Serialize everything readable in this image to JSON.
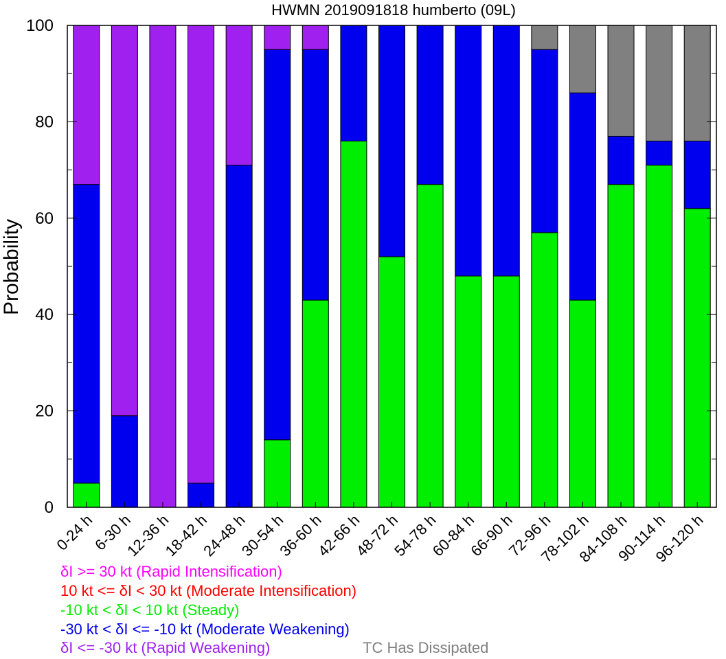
{
  "chart_data": {
    "type": "bar",
    "stacked": true,
    "title": "HWMN 2019091818 humberto (09L)",
    "ylabel": "Probability",
    "xlabel": "",
    "ylim": [
      0,
      100
    ],
    "yticks": [
      0,
      20,
      40,
      60,
      80,
      100
    ],
    "grid": false,
    "categories": [
      "0-24 h",
      "6-30 h",
      "12-36 h",
      "18-42 h",
      "24-48 h",
      "30-54 h",
      "36-60 h",
      "42-66 h",
      "48-72 h",
      "54-78 h",
      "60-84 h",
      "66-90 h",
      "72-96 h",
      "78-102 h",
      "84-108 h",
      "90-114 h",
      "96-120 h"
    ],
    "series": [
      {
        "key": "steady",
        "color": "#00ee00",
        "values": [
          5,
          0,
          0,
          0,
          0,
          14,
          43,
          76,
          52,
          67,
          48,
          48,
          57,
          43,
          67,
          71,
          62
        ]
      },
      {
        "key": "moderate_weakening",
        "color": "#0000ee",
        "values": [
          62,
          19,
          0,
          5,
          71,
          81,
          52,
          24,
          48,
          33,
          52,
          52,
          38,
          43,
          10,
          5,
          14
        ]
      },
      {
        "key": "rapid_weakening",
        "color": "#a020f0",
        "values": [
          33,
          81,
          100,
          95,
          29,
          5,
          5,
          0,
          0,
          0,
          0,
          0,
          0,
          0,
          0,
          0,
          0
        ]
      },
      {
        "key": "dissipated",
        "color": "#808080",
        "values": [
          0,
          0,
          0,
          0,
          0,
          0,
          0,
          0,
          0,
          0,
          0,
          0,
          5,
          14,
          23,
          24,
          24
        ]
      }
    ],
    "legend_placement": "bottom-left",
    "legend": [
      {
        "text": "δI >= 30 kt (Rapid Intensification)",
        "color": "#ff00ff"
      },
      {
        "text": "10 kt <= δI < 30 kt (Moderate Intensification)",
        "color": "#ff0000"
      },
      {
        "text": "-10 kt < δI < 10 kt (Steady)",
        "color": "#00ee00"
      },
      {
        "text": "-30 kt < δI <= -10 kt (Moderate Weakening)",
        "color": "#0000ee"
      },
      {
        "text": "δI <= -30 kt (Rapid Weakening)",
        "color": "#a020f0"
      },
      {
        "text": "TC Has Dissipated",
        "color": "#808080"
      }
    ]
  }
}
